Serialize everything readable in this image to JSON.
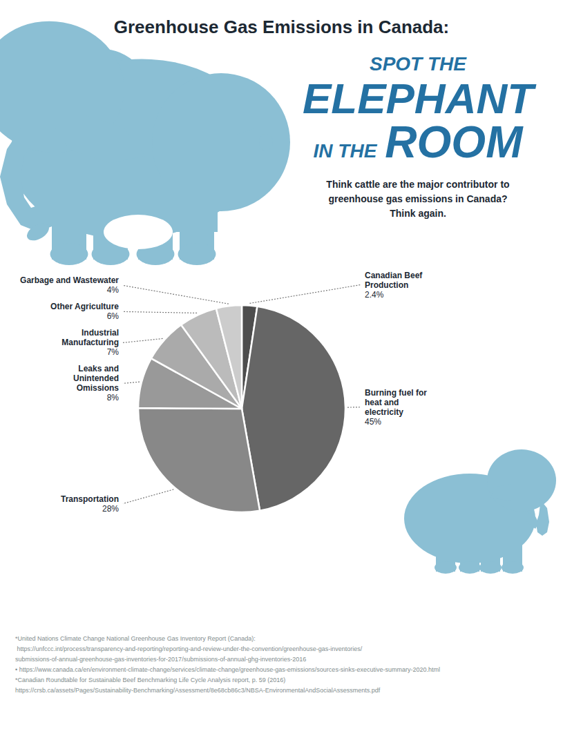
{
  "chart_data": {
    "type": "pie",
    "title": "Greenhouse Gas Emissions in Canada:",
    "annotations": [
      "SPOT THE",
      "ELEPHANT",
      "IN THE",
      "ROOM"
    ],
    "subtitle": "Think cattle are the major contributor to\ngreenhouse gas emissions in Canada?\nThink again.",
    "categories": [
      "Canadian Beef\nProduction",
      "Burning fuel for\nheat and\nelectricity",
      "Transportation",
      "Leaks and\nUnintended\nOmissions",
      "Industrial\nManufacturing",
      "Other Agriculture",
      "Garbage and Wastewater"
    ],
    "values": [
      2.4,
      45.0,
      28.0,
      8.0,
      7.0,
      6.0,
      4.0
    ],
    "value_labels": [
      "2.4%",
      "45%",
      "28%",
      "8%",
      "7%",
      "6%",
      "4%"
    ],
    "colors": [
      "#4d4d4d",
      "#666666",
      "#888888",
      "#999999",
      "#aaaaaa",
      "#bbbbbb",
      "#cccccc"
    ],
    "data_labels": true,
    "footnotes": [
      "*United Nations Climate Change National Greenhouse Gas Inventory Report (Canada):",
      " https://unfccc.int/process/transparency-and-reporting/reporting-and-review-under-the-convention/greenhouse-gas-inventories/",
      "submissions-of-annual-greenhouse-gas-inventories-for-2017/submissions-of-annual-ghg-inventories-2016",
      "• https://www.canada.ca/en/environment-climate-change/services/climate-change/greenhouse-gas-emissions/sources-sinks-executive-summary-2020.html",
      "*Canadian Roundtable for Sustainable Beef Benchmarking Life Cycle Analysis report, p. 59 (2016)",
      "https://crsb.ca/assets/Pages/Sustainability-Benchmarking/Assessment/8e68cb86c3/NBSA-EnvironmentalAndSocialAssessments.pdf"
    ]
  }
}
